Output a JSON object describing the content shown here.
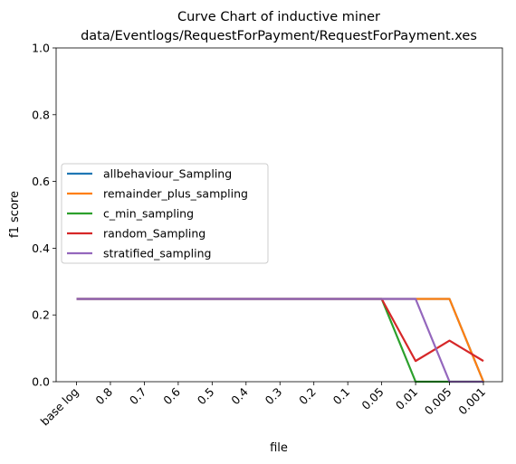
{
  "chart_data": {
    "type": "line",
    "title_line1": "Curve Chart of inductive miner",
    "title_line2": "data/Eventlogs/RequestForPayment/RequestForPayment.xes",
    "xlabel": "file",
    "ylabel": "f1 score",
    "categories": [
      "base log",
      "0.8",
      "0.7",
      "0.6",
      "0.5",
      "0.4",
      "0.3",
      "0.2",
      "0.1",
      "0.05",
      "0.01",
      "0.005",
      "0.001"
    ],
    "ylim": [
      0,
      1.0
    ],
    "yticks": [
      "0.0",
      "0.2",
      "0.4",
      "0.6",
      "0.8",
      "1.0"
    ],
    "grid": false,
    "legend_position": "center-left",
    "series": [
      {
        "name": "allbehaviour_Sampling",
        "color": "#1f77b4",
        "values": [
          0.248,
          0.248,
          0.248,
          0.248,
          0.248,
          0.248,
          0.248,
          0.248,
          0.248,
          0.248,
          0.248,
          0.248,
          0.0
        ]
      },
      {
        "name": "remainder_plus_sampling",
        "color": "#ff7f0e",
        "values": [
          0.248,
          0.248,
          0.248,
          0.248,
          0.248,
          0.248,
          0.248,
          0.248,
          0.248,
          0.248,
          0.248,
          0.248,
          0.0
        ]
      },
      {
        "name": "c_min_sampling",
        "color": "#2ca02c",
        "values": [
          0.248,
          0.248,
          0.248,
          0.248,
          0.248,
          0.248,
          0.248,
          0.248,
          0.248,
          0.248,
          0.0,
          0.0,
          0.0
        ]
      },
      {
        "name": "random_Sampling",
        "color": "#d62728",
        "values": [
          0.248,
          0.248,
          0.248,
          0.248,
          0.248,
          0.248,
          0.248,
          0.248,
          0.248,
          0.248,
          0.062,
          0.123,
          0.062
        ]
      },
      {
        "name": "stratified_sampling",
        "color": "#9467bd",
        "values": [
          0.248,
          0.248,
          0.248,
          0.248,
          0.248,
          0.248,
          0.248,
          0.248,
          0.248,
          0.248,
          0.248,
          0.0,
          0.0
        ]
      }
    ]
  }
}
